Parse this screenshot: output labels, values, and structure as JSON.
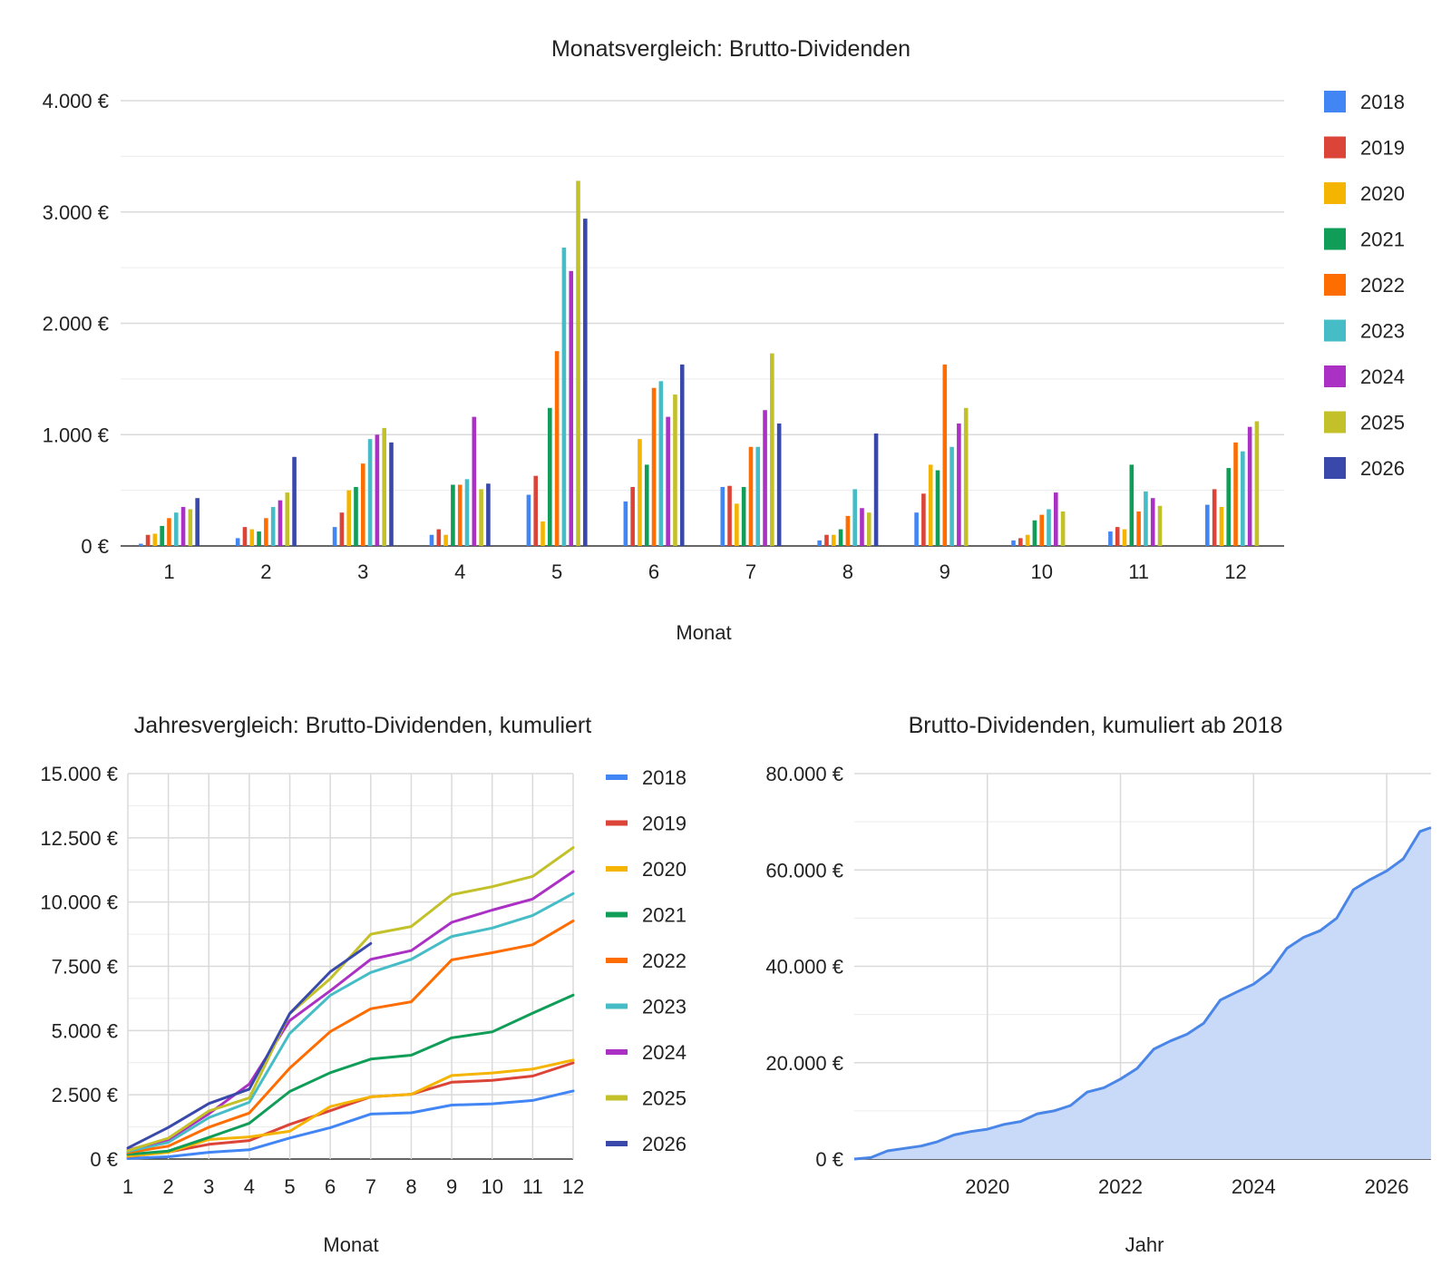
{
  "colors": {
    "2018": "#4285f4",
    "2019": "#db4437",
    "2020": "#f4b400",
    "2021": "#0f9d58",
    "2022": "#ff6d01",
    "2023": "#46bdc6",
    "2024": "#ab30c4",
    "2025": "#c3c12a",
    "2026": "#3949ab",
    "area_line": "#4a86e8",
    "area_fill": "#c9daf8"
  },
  "chart_data": [
    {
      "type": "bar",
      "title": "Monatsvergleich: Brutto-Dividenden",
      "xlabel": "Monat",
      "ylabel": "",
      "ylim": [
        0,
        4000
      ],
      "yticks": [
        "0 €",
        "1.000 €",
        "2.000 €",
        "3.000 €",
        "4.000 €"
      ],
      "categories": [
        "1",
        "2",
        "3",
        "4",
        "5",
        "6",
        "7",
        "8",
        "9",
        "10",
        "11",
        "12"
      ],
      "legend_position": "right",
      "grid": true,
      "series": [
        {
          "name": "2018",
          "values": [
            20,
            70,
            170,
            100,
            460,
            400,
            530,
            50,
            300,
            50,
            130,
            370
          ]
        },
        {
          "name": "2019",
          "values": [
            100,
            170,
            300,
            150,
            630,
            530,
            540,
            100,
            470,
            70,
            170,
            510
          ]
        },
        {
          "name": "2020",
          "values": [
            110,
            150,
            500,
            100,
            220,
            960,
            380,
            100,
            730,
            100,
            150,
            350
          ]
        },
        {
          "name": "2021",
          "values": [
            180,
            130,
            530,
            550,
            1240,
            730,
            530,
            150,
            680,
            230,
            730,
            700
          ]
        },
        {
          "name": "2022",
          "values": [
            250,
            250,
            740,
            550,
            1750,
            1420,
            890,
            270,
            1630,
            280,
            310,
            930
          ]
        },
        {
          "name": "2023",
          "values": [
            300,
            350,
            960,
            600,
            2680,
            1480,
            890,
            510,
            890,
            330,
            490,
            850
          ]
        },
        {
          "name": "2024",
          "values": [
            350,
            410,
            1000,
            1160,
            2470,
            1160,
            1220,
            340,
            1100,
            480,
            430,
            1070
          ]
        },
        {
          "name": "2025",
          "values": [
            330,
            480,
            1060,
            510,
            3280,
            1360,
            1730,
            300,
            1240,
            310,
            360,
            1120
          ]
        },
        {
          "name": "2026",
          "values": [
            430,
            800,
            930,
            560,
            2940,
            1630,
            1100,
            1010,
            null,
            null,
            null,
            null
          ]
        }
      ]
    },
    {
      "type": "line",
      "title": "Jahresvergleich: Brutto-Dividenden, kumuliert",
      "xlabel": "Monat",
      "ylabel": "",
      "ylim": [
        0,
        15000
      ],
      "yticks": [
        "0 €",
        "2.500 €",
        "5.000 €",
        "7.500 €",
        "10.000 €",
        "12.500 €",
        "15.000 €"
      ],
      "x": [
        "1",
        "2",
        "3",
        "4",
        "5",
        "6",
        "7",
        "8",
        "9",
        "10",
        "11",
        "12"
      ],
      "legend_position": "right",
      "grid": true,
      "series": [
        {
          "name": "2018",
          "values": [
            20,
            90,
            260,
            360,
            820,
            1220,
            1750,
            1800,
            2100,
            2150,
            2280,
            2650
          ]
        },
        {
          "name": "2019",
          "values": [
            100,
            270,
            570,
            720,
            1350,
            1880,
            2420,
            2520,
            2990,
            3060,
            3230,
            3740
          ]
        },
        {
          "name": "2020",
          "values": [
            110,
            260,
            760,
            860,
            1080,
            2040,
            2420,
            2520,
            3250,
            3350,
            3500,
            3850
          ]
        },
        {
          "name": "2021",
          "values": [
            180,
            310,
            840,
            1390,
            2630,
            3360,
            3890,
            4040,
            4720,
            4950,
            5680,
            6380
          ]
        },
        {
          "name": "2022",
          "values": [
            250,
            500,
            1240,
            1790,
            3540,
            4960,
            5850,
            6120,
            7750,
            8030,
            8340,
            9270
          ]
        },
        {
          "name": "2023",
          "values": [
            300,
            650,
            1610,
            2210,
            4890,
            6370,
            7260,
            7770,
            8660,
            8990,
            9480,
            10330
          ]
        },
        {
          "name": "2024",
          "values": [
            350,
            760,
            1760,
            2920,
            5390,
            6550,
            7770,
            8110,
            9210,
            9690,
            10120,
            11190
          ]
        },
        {
          "name": "2025",
          "values": [
            330,
            810,
            1870,
            2380,
            5660,
            7020,
            8750,
            9050,
            10290,
            10600,
            11000,
            12120
          ]
        },
        {
          "name": "2026",
          "values": [
            430,
            1230,
            2160,
            2720,
            5660,
            7290,
            8390,
            null,
            null,
            null,
            null,
            null
          ]
        }
      ]
    },
    {
      "type": "area",
      "title": "Brutto-Dividenden, kumuliert ab 2018",
      "xlabel": "Jahr",
      "ylabel": "",
      "ylim": [
        0,
        80000
      ],
      "yticks": [
        "0 €",
        "20.000 €",
        "40.000 €",
        "60.000 €",
        "80.000 €"
      ],
      "xticks": [
        "2020",
        "2022",
        "2024",
        "2026"
      ],
      "grid": true,
      "x": [
        "2018-01",
        "2018-04",
        "2018-07",
        "2018-10",
        "2019-01",
        "2019-04",
        "2019-07",
        "2019-10",
        "2020-01",
        "2020-04",
        "2020-07",
        "2020-10",
        "2021-01",
        "2021-04",
        "2021-07",
        "2021-10",
        "2022-01",
        "2022-04",
        "2022-07",
        "2022-10",
        "2023-01",
        "2023-04",
        "2023-07",
        "2023-10",
        "2024-01",
        "2024-04",
        "2024-07",
        "2024-10",
        "2025-01",
        "2025-04",
        "2025-07",
        "2025-10",
        "2026-01",
        "2026-04",
        "2026-07",
        "2026-09"
      ],
      "values": [
        0,
        300,
        1700,
        2200,
        2700,
        3600,
        5000,
        5700,
        6200,
        7200,
        7800,
        9400,
        10000,
        11100,
        13900,
        14800,
        16600,
        18800,
        22800,
        24500,
        25900,
        28200,
        33000,
        34700,
        36300,
        38900,
        43700,
        46000,
        47400,
        50000,
        55900,
        58000,
        59800,
        62300,
        68000,
        68800
      ]
    }
  ]
}
